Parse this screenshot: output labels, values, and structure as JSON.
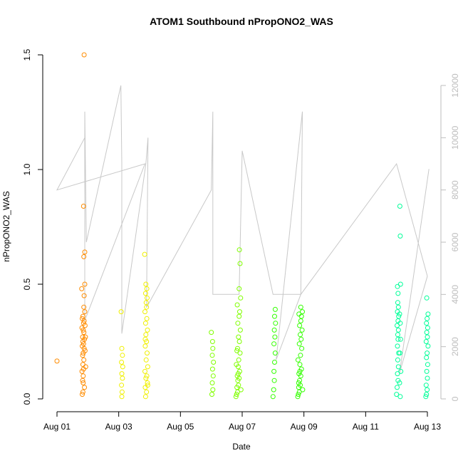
{
  "chart_data": {
    "type": "scatter",
    "title": "ATOM1 Southbound nPropONO2_WAS",
    "xlabel": "Date",
    "ylabel": "nPropONO2_WAS",
    "x_ticks": [
      "Aug 01",
      "Aug 03",
      "Aug 05",
      "Aug 07",
      "Aug 09",
      "Aug 11",
      "Aug 13"
    ],
    "y_ticks": [
      "0.0",
      "0.5",
      "1.0",
      "1.5"
    ],
    "y2_ticks": [
      "0",
      "2000",
      "4000",
      "6000",
      "8000",
      "10000",
      "12000"
    ],
    "xlim_days": [
      1,
      13
    ],
    "ylim": [
      0,
      1.5
    ],
    "y2lim": [
      0,
      12000
    ],
    "colors": {
      "axis": "#000000",
      "secondary_axis": "#bdbdbd",
      "altitude_line": "#c8c8c8"
    },
    "scatter_series": [
      {
        "color": "#ff8c00",
        "points": [
          [
            1.0,
            0.165
          ],
          [
            1.82,
            0.02
          ],
          [
            1.84,
            0.03
          ],
          [
            1.83,
            0.08
          ],
          [
            1.85,
            0.1
          ],
          [
            1.81,
            0.12
          ],
          [
            1.86,
            0.13
          ],
          [
            1.84,
            0.15
          ],
          [
            1.87,
            0.17
          ],
          [
            1.83,
            0.19
          ],
          [
            1.85,
            0.2
          ],
          [
            1.88,
            0.22
          ],
          [
            1.82,
            0.23
          ],
          [
            1.86,
            0.24
          ],
          [
            1.84,
            0.25
          ],
          [
            1.89,
            0.26
          ],
          [
            1.83,
            0.27
          ],
          [
            1.87,
            0.29
          ],
          [
            1.85,
            0.3
          ],
          [
            1.81,
            0.31
          ],
          [
            1.86,
            0.33
          ],
          [
            1.88,
            0.34
          ],
          [
            1.84,
            0.36
          ],
          [
            1.9,
            0.38
          ],
          [
            1.87,
            0.4
          ],
          [
            1.8,
            0.48
          ],
          [
            1.88,
            0.45
          ],
          [
            1.87,
            0.62
          ],
          [
            1.9,
            0.64
          ],
          [
            1.86,
            0.84
          ],
          [
            1.88,
            1.5
          ],
          [
            1.92,
            0.27
          ],
          [
            1.91,
            0.21
          ],
          [
            1.93,
            0.14
          ],
          [
            1.89,
            0.05
          ],
          [
            1.85,
            0.07
          ],
          [
            1.91,
            0.32
          ],
          [
            1.82,
            0.35
          ],
          [
            1.9,
            0.5
          ]
        ]
      },
      {
        "color": "#f0f000",
        "points": [
          [
            3.08,
            0.38
          ],
          [
            3.1,
            0.01
          ],
          [
            3.11,
            0.03
          ],
          [
            3.09,
            0.06
          ],
          [
            3.12,
            0.09
          ],
          [
            3.1,
            0.11
          ],
          [
            3.13,
            0.14
          ],
          [
            3.09,
            0.16
          ],
          [
            3.12,
            0.19
          ],
          [
            3.1,
            0.22
          ],
          [
            3.84,
            0.63
          ],
          [
            3.87,
            0.01
          ],
          [
            3.9,
            0.03
          ],
          [
            3.86,
            0.05
          ],
          [
            3.93,
            0.07
          ],
          [
            3.88,
            0.09
          ],
          [
            3.91,
            0.1
          ],
          [
            3.85,
            0.12
          ],
          [
            3.94,
            0.14
          ],
          [
            3.89,
            0.17
          ],
          [
            3.92,
            0.2
          ],
          [
            3.86,
            0.23
          ],
          [
            3.9,
            0.25
          ],
          [
            3.88,
            0.28
          ],
          [
            3.93,
            0.3
          ],
          [
            3.87,
            0.33
          ],
          [
            3.91,
            0.35
          ],
          [
            3.85,
            0.38
          ],
          [
            3.9,
            0.4
          ],
          [
            3.89,
            0.42
          ],
          [
            3.92,
            0.44
          ],
          [
            3.87,
            0.46
          ],
          [
            3.91,
            0.48
          ],
          [
            3.88,
            0.5
          ],
          [
            3.94,
            0.06
          ],
          [
            3.86,
            0.26
          ]
        ]
      },
      {
        "color": "#80ff00",
        "points": [
          [
            6.0,
            0.29
          ],
          [
            6.02,
            0.02
          ],
          [
            6.05,
            0.04
          ],
          [
            6.03,
            0.07
          ],
          [
            6.06,
            0.1
          ],
          [
            6.04,
            0.13
          ],
          [
            6.07,
            0.16
          ],
          [
            6.03,
            0.19
          ],
          [
            6.05,
            0.22
          ],
          [
            6.04,
            0.25
          ],
          [
            6.8,
            0.01
          ],
          [
            6.82,
            0.02
          ],
          [
            6.85,
            0.03
          ],
          [
            6.83,
            0.05
          ],
          [
            6.88,
            0.06
          ],
          [
            6.86,
            0.08
          ],
          [
            6.9,
            0.09
          ],
          [
            6.84,
            0.1
          ],
          [
            6.92,
            0.12
          ],
          [
            6.87,
            0.14
          ],
          [
            6.81,
            0.15
          ],
          [
            6.89,
            0.17
          ],
          [
            6.93,
            0.2
          ],
          [
            6.85,
            0.22
          ],
          [
            6.91,
            0.25
          ],
          [
            6.88,
            0.27
          ],
          [
            6.94,
            0.3
          ],
          [
            6.86,
            0.33
          ],
          [
            6.9,
            0.36
          ],
          [
            6.92,
            0.38
          ],
          [
            6.84,
            0.41
          ],
          [
            6.95,
            0.44
          ],
          [
            6.9,
            0.48
          ],
          [
            6.93,
            0.59
          ],
          [
            6.91,
            0.65
          ],
          [
            6.83,
            0.21
          ],
          [
            6.96,
            0.04
          ],
          [
            6.87,
            0.11
          ]
        ]
      },
      {
        "color": "#33ff00",
        "points": [
          [
            8.0,
            0.01
          ],
          [
            8.02,
            0.04
          ],
          [
            8.04,
            0.08
          ],
          [
            8.03,
            0.12
          ],
          [
            8.05,
            0.16
          ],
          [
            8.07,
            0.2
          ],
          [
            8.03,
            0.24
          ],
          [
            8.06,
            0.27
          ],
          [
            8.04,
            0.3
          ],
          [
            8.08,
            0.33
          ],
          [
            8.05,
            0.36
          ],
          [
            8.07,
            0.39
          ],
          [
            8.8,
            0.01
          ],
          [
            8.82,
            0.02
          ],
          [
            8.85,
            0.03
          ],
          [
            8.83,
            0.05
          ],
          [
            8.88,
            0.06
          ],
          [
            8.86,
            0.08
          ],
          [
            8.9,
            0.1
          ],
          [
            8.84,
            0.11
          ],
          [
            8.92,
            0.13
          ],
          [
            8.87,
            0.15
          ],
          [
            8.81,
            0.17
          ],
          [
            8.89,
            0.19
          ],
          [
            8.93,
            0.22
          ],
          [
            8.85,
            0.24
          ],
          [
            8.91,
            0.26
          ],
          [
            8.88,
            0.28
          ],
          [
            8.94,
            0.3
          ],
          [
            8.86,
            0.32
          ],
          [
            8.9,
            0.34
          ],
          [
            8.92,
            0.36
          ],
          [
            8.84,
            0.37
          ],
          [
            8.95,
            0.38
          ],
          [
            8.9,
            0.4
          ],
          [
            8.83,
            0.07
          ],
          [
            8.96,
            0.04
          ],
          [
            8.87,
            0.12
          ]
        ]
      },
      {
        "color": "#00ff99",
        "points": [
          [
            12.0,
            0.02
          ],
          [
            12.02,
            0.05
          ],
          [
            12.05,
            0.08
          ],
          [
            12.03,
            0.11
          ],
          [
            12.06,
            0.14
          ],
          [
            12.04,
            0.17
          ],
          [
            12.07,
            0.2
          ],
          [
            12.03,
            0.23
          ],
          [
            12.05,
            0.26
          ],
          [
            12.04,
            0.28
          ],
          [
            12.06,
            0.3
          ],
          [
            12.02,
            0.32
          ],
          [
            12.05,
            0.34
          ],
          [
            12.07,
            0.36
          ],
          [
            12.03,
            0.38
          ],
          [
            12.06,
            0.4
          ],
          [
            12.04,
            0.42
          ],
          [
            12.05,
            0.46
          ],
          [
            12.03,
            0.49
          ],
          [
            12.12,
            0.01
          ],
          [
            12.1,
            0.07
          ],
          [
            12.14,
            0.12
          ],
          [
            12.11,
            0.2
          ],
          [
            12.13,
            0.26
          ],
          [
            12.12,
            0.33
          ],
          [
            12.1,
            0.37
          ],
          [
            12.13,
            0.5
          ],
          [
            12.12,
            0.71
          ],
          [
            12.11,
            0.84
          ],
          [
            12.95,
            0.01
          ],
          [
            12.97,
            0.02
          ],
          [
            12.99,
            0.04
          ],
          [
            12.96,
            0.06
          ],
          [
            13.0,
            0.09
          ],
          [
            12.98,
            0.12
          ],
          [
            13.01,
            0.15
          ],
          [
            12.97,
            0.18
          ],
          [
            12.99,
            0.2
          ],
          [
            13.02,
            0.23
          ],
          [
            12.96,
            0.25
          ],
          [
            13.0,
            0.27
          ],
          [
            12.98,
            0.29
          ],
          [
            13.01,
            0.31
          ],
          [
            12.97,
            0.33
          ],
          [
            12.99,
            0.35
          ],
          [
            13.02,
            0.37
          ],
          [
            12.98,
            0.44
          ]
        ]
      }
    ],
    "altitude_series": {
      "color": "#c8c8c8",
      "points": [
        [
          1.0,
          8000
        ],
        [
          1.9,
          10000
        ],
        [
          1.0,
          8000
        ],
        [
          3.85,
          9000
        ],
        [
          1.9,
          3000
        ],
        [
          1.9,
          11000
        ],
        [
          1.95,
          6000
        ],
        [
          3.07,
          12000
        ],
        [
          3.1,
          9000
        ],
        [
          3.1,
          2500
        ],
        [
          3.88,
          9000
        ],
        [
          3.95,
          10000
        ],
        [
          3.9,
          3500
        ],
        [
          6.0,
          8000
        ],
        [
          6.05,
          11000
        ],
        [
          6.05,
          4000
        ],
        [
          6.9,
          4000
        ],
        [
          7.0,
          9500
        ],
        [
          8.0,
          4000
        ],
        [
          8.9,
          4000
        ],
        [
          8.95,
          11000
        ],
        [
          8.1,
          1500
        ],
        [
          8.9,
          4000
        ],
        [
          12.0,
          9000
        ],
        [
          13.0,
          4700
        ],
        [
          12.1,
          1000
        ],
        [
          13.05,
          8800
        ]
      ]
    }
  }
}
